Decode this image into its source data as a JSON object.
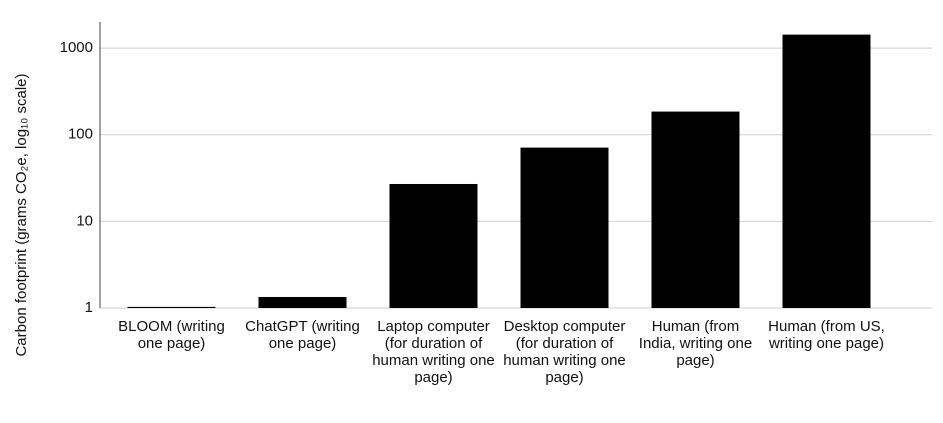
{
  "chart_data": {
    "type": "bar",
    "y_label": "Carbon footprint (grams CO₂e, log₁₀ scale)",
    "categories": [
      "BLOOM (writing one page)",
      "ChatGPT (writing one page)",
      "Laptop computer (for duration of human writing one page)",
      "Desktop computer (for duration of human writing one page)",
      "Human (from India, writing one page)",
      "Human (from US, writing one page)"
    ],
    "values": [
      1.03,
      1.34,
      27,
      71,
      185,
      1430
    ],
    "color": "#000000",
    "log_scale": true,
    "grid": true,
    "ylim": [
      1,
      2000
    ],
    "yticks": [
      1,
      10,
      100,
      1000
    ]
  }
}
